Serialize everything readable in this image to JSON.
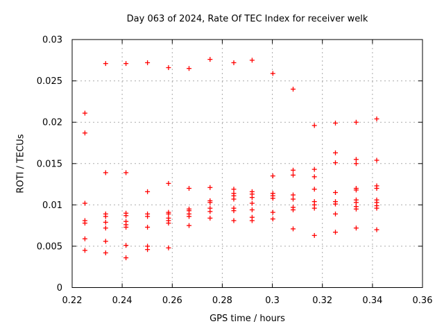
{
  "chart_data": {
    "type": "scatter",
    "title": "Day 063 of 2024, Rate Of TEC Index for receiver welk",
    "xlabel": "GPS time / hours",
    "ylabel": "ROTI / TECUs",
    "xlim": [
      0.22,
      0.36
    ],
    "ylim": [
      0,
      0.03
    ],
    "xticks": [
      0.22,
      0.24,
      0.26,
      0.28,
      0.3,
      0.32,
      0.34,
      0.36
    ],
    "xtick_labels": [
      "0.22",
      "0.24",
      "0.26",
      "0.28",
      "0.3",
      "0.32",
      "0.34",
      "0.36"
    ],
    "yticks": [
      0,
      0.005,
      0.01,
      0.015,
      0.02,
      0.025,
      0.03
    ],
    "ytick_labels": [
      "0",
      "0.005",
      "0.01",
      "0.015",
      "0.02",
      "0.025",
      "0.03"
    ],
    "grid": true,
    "legend": "none",
    "marker": {
      "shape": "plus",
      "color": "#ff0000",
      "size": 7
    },
    "series": [
      {
        "name": "ROTI",
        "points": [
          [
            0.2251,
            0.0211
          ],
          [
            0.2251,
            0.0187
          ],
          [
            0.2251,
            0.0102
          ],
          [
            0.2251,
            0.0081
          ],
          [
            0.2251,
            0.0078
          ],
          [
            0.2251,
            0.0059
          ],
          [
            0.2251,
            0.0045
          ],
          [
            0.2334,
            0.0271
          ],
          [
            0.2334,
            0.0139
          ],
          [
            0.2334,
            0.0089
          ],
          [
            0.2334,
            0.0086
          ],
          [
            0.2334,
            0.0079
          ],
          [
            0.2334,
            0.0072
          ],
          [
            0.2334,
            0.0056
          ],
          [
            0.2334,
            0.0042
          ],
          [
            0.2415,
            0.0271
          ],
          [
            0.2415,
            0.0139
          ],
          [
            0.2415,
            0.009
          ],
          [
            0.2415,
            0.0087
          ],
          [
            0.2415,
            0.008
          ],
          [
            0.2415,
            0.0076
          ],
          [
            0.2415,
            0.0073
          ],
          [
            0.2415,
            0.0051
          ],
          [
            0.2415,
            0.0036
          ],
          [
            0.2501,
            0.0272
          ],
          [
            0.2501,
            0.0116
          ],
          [
            0.2501,
            0.0089
          ],
          [
            0.2501,
            0.0086
          ],
          [
            0.2501,
            0.0073
          ],
          [
            0.2501,
            0.005
          ],
          [
            0.2501,
            0.0046
          ],
          [
            0.2585,
            0.0266
          ],
          [
            0.2585,
            0.0126
          ],
          [
            0.2585,
            0.0091
          ],
          [
            0.2585,
            0.0089
          ],
          [
            0.2585,
            0.0084
          ],
          [
            0.2585,
            0.0081
          ],
          [
            0.2585,
            0.0078
          ],
          [
            0.2585,
            0.0048
          ],
          [
            0.2667,
            0.0265
          ],
          [
            0.2667,
            0.012
          ],
          [
            0.2667,
            0.0095
          ],
          [
            0.2667,
            0.0093
          ],
          [
            0.2667,
            0.0089
          ],
          [
            0.2667,
            0.0086
          ],
          [
            0.2667,
            0.0075
          ],
          [
            0.2751,
            0.0276
          ],
          [
            0.2751,
            0.0121
          ],
          [
            0.2751,
            0.0105
          ],
          [
            0.2751,
            0.0103
          ],
          [
            0.2751,
            0.0096
          ],
          [
            0.2751,
            0.0092
          ],
          [
            0.2751,
            0.0084
          ],
          [
            0.2846,
            0.0272
          ],
          [
            0.2846,
            0.0119
          ],
          [
            0.2846,
            0.0114
          ],
          [
            0.2846,
            0.0111
          ],
          [
            0.2846,
            0.0107
          ],
          [
            0.2846,
            0.0096
          ],
          [
            0.2846,
            0.0093
          ],
          [
            0.2846,
            0.0081
          ],
          [
            0.2919,
            0.0275
          ],
          [
            0.2919,
            0.0116
          ],
          [
            0.2919,
            0.0113
          ],
          [
            0.2919,
            0.0109
          ],
          [
            0.2919,
            0.0102
          ],
          [
            0.2919,
            0.0094
          ],
          [
            0.2919,
            0.0085
          ],
          [
            0.2919,
            0.0081
          ],
          [
            0.3002,
            0.0259
          ],
          [
            0.3002,
            0.0135
          ],
          [
            0.3002,
            0.0114
          ],
          [
            0.3002,
            0.0111
          ],
          [
            0.3002,
            0.0108
          ],
          [
            0.3002,
            0.0091
          ],
          [
            0.3002,
            0.0083
          ],
          [
            0.3083,
            0.024
          ],
          [
            0.3083,
            0.0142
          ],
          [
            0.3083,
            0.0136
          ],
          [
            0.3083,
            0.0112
          ],
          [
            0.3083,
            0.0107
          ],
          [
            0.3083,
            0.0097
          ],
          [
            0.3083,
            0.0094
          ],
          [
            0.3083,
            0.0071
          ],
          [
            0.3168,
            0.0196
          ],
          [
            0.3168,
            0.0143
          ],
          [
            0.3168,
            0.0134
          ],
          [
            0.3168,
            0.0119
          ],
          [
            0.3168,
            0.0104
          ],
          [
            0.3168,
            0.01
          ],
          [
            0.3168,
            0.0096
          ],
          [
            0.3168,
            0.0063
          ],
          [
            0.3252,
            0.0199
          ],
          [
            0.3252,
            0.0163
          ],
          [
            0.3252,
            0.0151
          ],
          [
            0.3252,
            0.0115
          ],
          [
            0.3252,
            0.0104
          ],
          [
            0.3252,
            0.0101
          ],
          [
            0.3252,
            0.0089
          ],
          [
            0.3252,
            0.0067
          ],
          [
            0.3335,
            0.02
          ],
          [
            0.3335,
            0.0155
          ],
          [
            0.3335,
            0.015
          ],
          [
            0.3335,
            0.012
          ],
          [
            0.3335,
            0.0118
          ],
          [
            0.3335,
            0.0106
          ],
          [
            0.3335,
            0.0103
          ],
          [
            0.3335,
            0.0098
          ],
          [
            0.3335,
            0.0095
          ],
          [
            0.3335,
            0.0072
          ],
          [
            0.3417,
            0.0204
          ],
          [
            0.3417,
            0.0154
          ],
          [
            0.3417,
            0.0123
          ],
          [
            0.3417,
            0.012
          ],
          [
            0.3417,
            0.0106
          ],
          [
            0.3417,
            0.0103
          ],
          [
            0.3417,
            0.0099
          ],
          [
            0.3417,
            0.0096
          ],
          [
            0.3417,
            0.007
          ]
        ]
      }
    ],
    "style": {
      "background": "#ffffff",
      "axis_color": "#000000",
      "grid_color": "#aaaaaa",
      "text_color": "#000000"
    }
  }
}
